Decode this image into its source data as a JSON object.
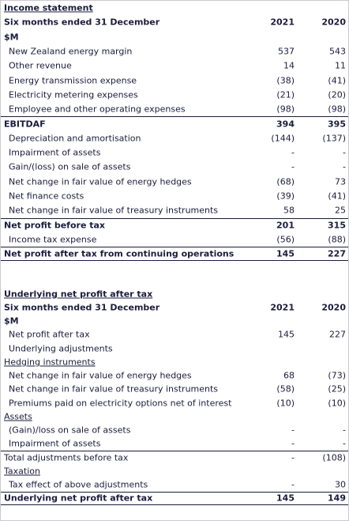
{
  "income_statement": {
    "title": "Income statement",
    "header": {
      "label": "Six months ended 31 December",
      "years": [
        "2021",
        "2020"
      ]
    },
    "unit": "$M",
    "rows": [
      [
        "New Zealand energy margin",
        "537",
        "543"
      ],
      [
        "Other revenue",
        "14",
        "11"
      ],
      [
        "Energy transmission expense",
        "(38)",
        "(41)"
      ],
      [
        "Electricity metering expenses",
        "(21)",
        "(20)"
      ],
      [
        "Employee and other operating expenses",
        "(98)",
        "(98)"
      ],
      [
        "EBITDAF",
        "394",
        "395"
      ],
      [
        "Depreciation and amortisation",
        "(144)",
        "(137)"
      ],
      [
        "Impairment of assets",
        "-",
        "-"
      ],
      [
        "Gain/(loss) on sale of assets",
        "-",
        "-"
      ],
      [
        "Net change in fair value of energy hedges",
        "(68)",
        "73"
      ],
      [
        "Net finance costs",
        "(39)",
        "(41)"
      ],
      [
        "Net change in fair value of treasury instruments",
        "58",
        "25"
      ],
      [
        "Net profit before tax",
        "201",
        "315"
      ],
      [
        "Income tax expense",
        "(56)",
        "(88)"
      ],
      [
        "Net profit after tax from continuing operations",
        "145",
        "227"
      ]
    ]
  },
  "underlying": {
    "title": "Underlying net profit after tax",
    "header": {
      "label": "Six months ended 31 December",
      "years": [
        "2021",
        "2020"
      ]
    },
    "unit": "$M",
    "rows": [
      [
        "Net profit after tax",
        "145",
        "227"
      ],
      [
        "Underlying adjustments"
      ],
      [
        "Hedging instruments"
      ],
      [
        "Net change in fair value of energy hedges",
        "68",
        "(73)"
      ],
      [
        "Net change in fair value of treasury instruments",
        "(58)",
        "(25)"
      ],
      [
        "Premiums paid on electricity options net of interest",
        "(10)",
        "(10)"
      ],
      [
        "Assets"
      ],
      [
        "(Gain)/loss on sale of assets",
        "-",
        "-"
      ],
      [
        "Impairment of assets",
        "-",
        "-"
      ],
      [
        "Total adjustments before tax",
        "-",
        "(108)"
      ],
      [
        "Taxation"
      ],
      [
        "Tax effect of above adjustments",
        "-",
        "30"
      ],
      [
        "Underlying net profit after tax",
        "145",
        "149"
      ]
    ]
  }
}
